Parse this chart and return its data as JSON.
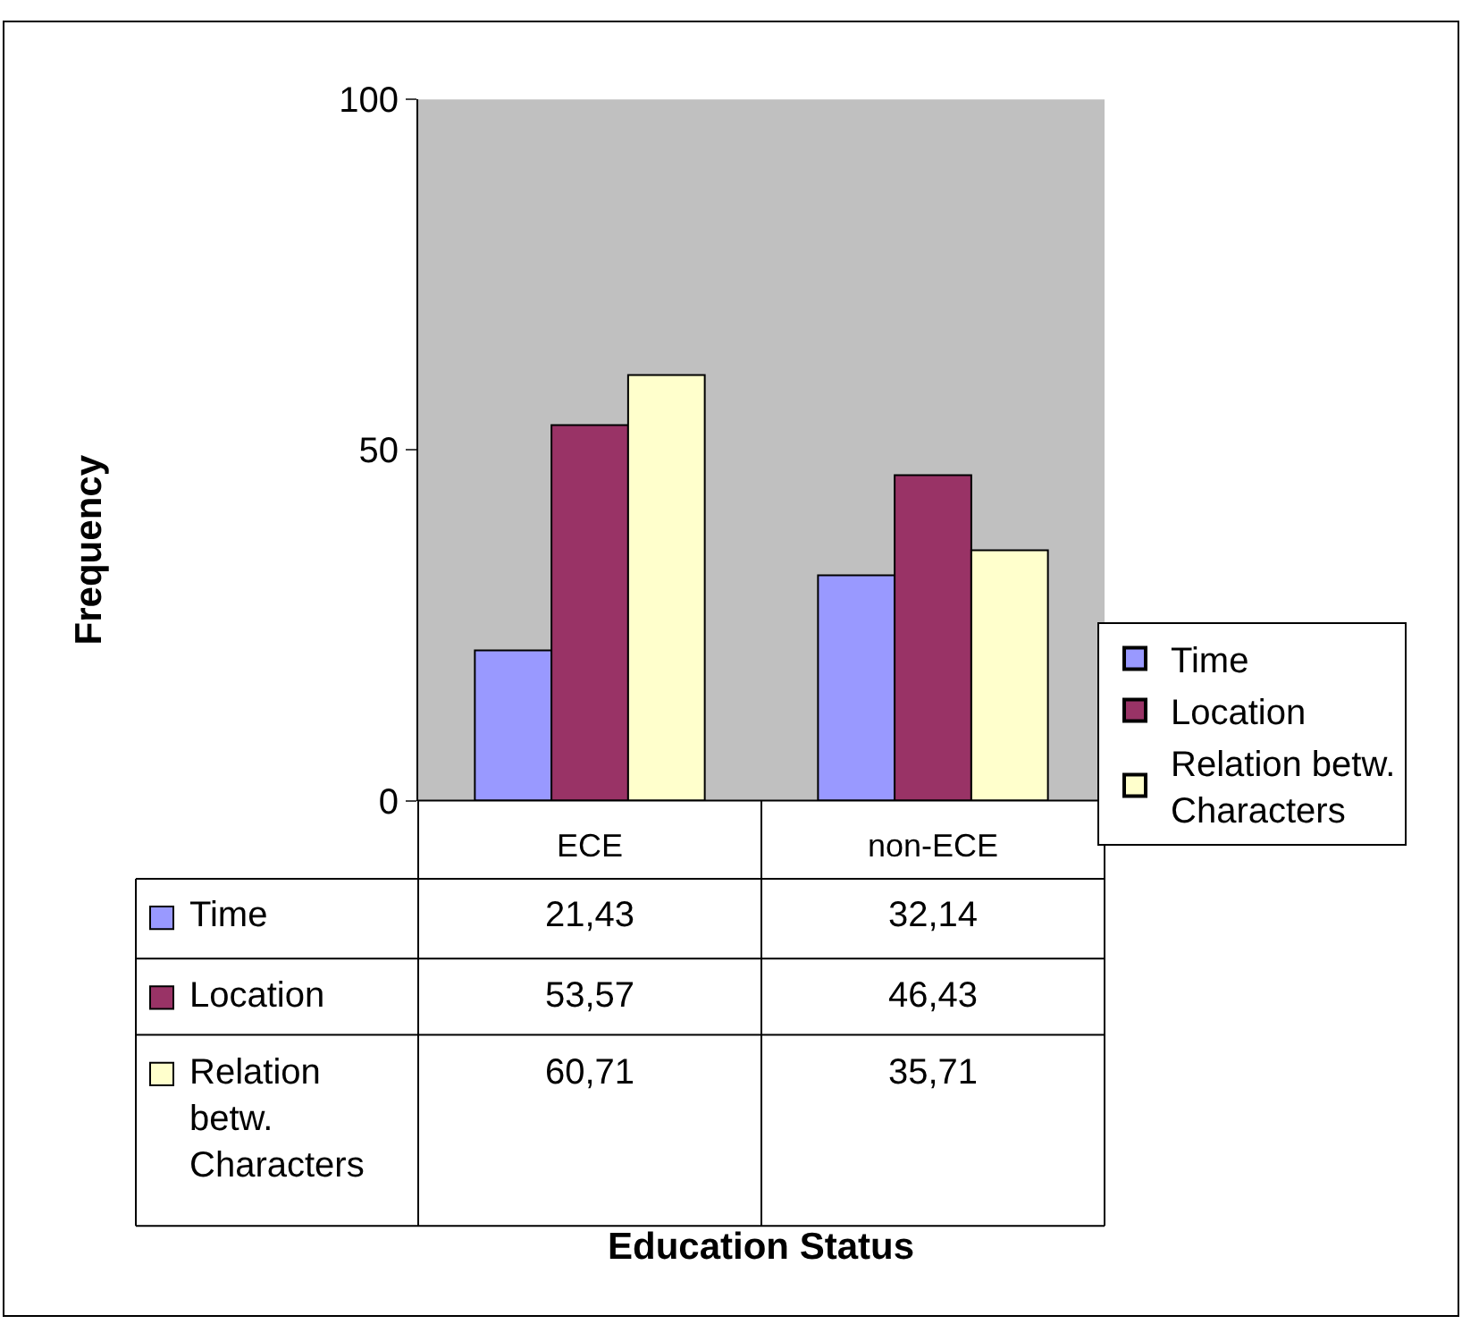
{
  "chart_data": {
    "type": "bar",
    "annotations": [
      "Frequency",
      "Education Status"
    ],
    "categories": [
      "ECE",
      "non-ECE"
    ],
    "series": [
      {
        "name": "Time",
        "color": "#9999ff",
        "values": [
          21.43,
          32.14
        ],
        "value_labels": [
          "21,43",
          "32,14"
        ]
      },
      {
        "name": "Location",
        "color": "#993366",
        "values": [
          53.57,
          46.43
        ],
        "value_labels": [
          "53,57",
          "46,43"
        ]
      },
      {
        "name": "Relation betw. Characters",
        "color": "#ffffcc",
        "values": [
          60.71,
          35.71
        ],
        "value_labels": [
          "60,71",
          "35,71"
        ]
      }
    ],
    "ylim": [
      0,
      100
    ],
    "yticks": [
      0,
      50,
      100
    ],
    "grid": false,
    "legend": "right"
  }
}
